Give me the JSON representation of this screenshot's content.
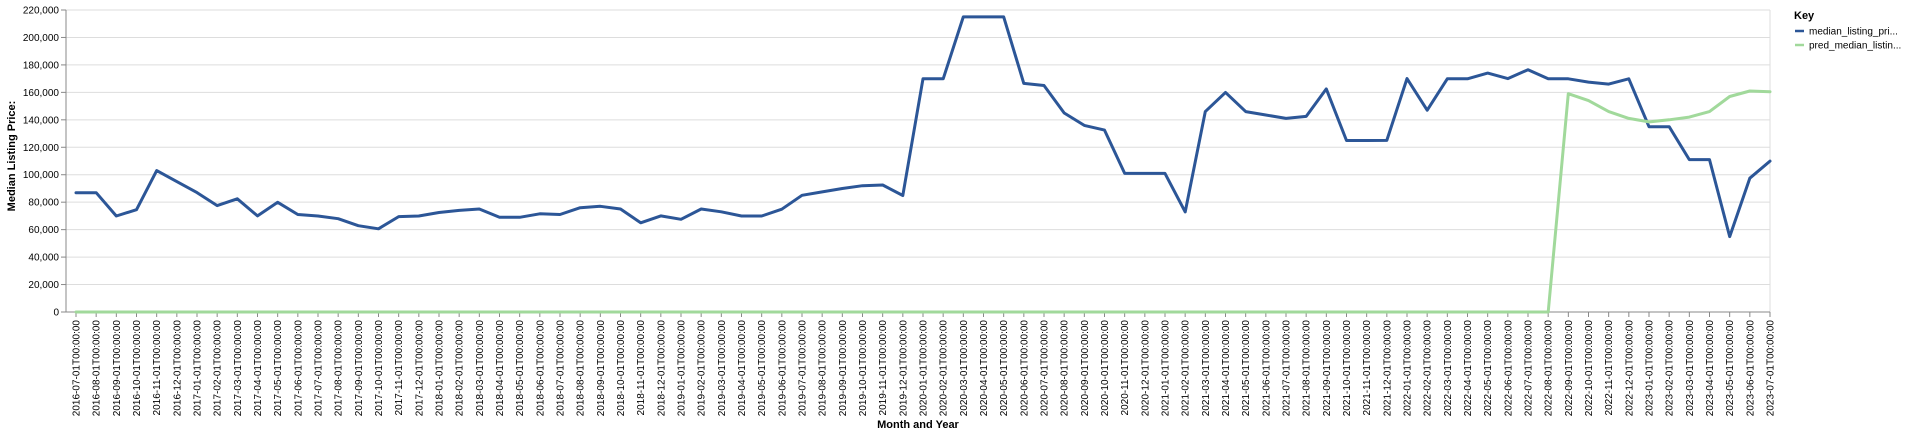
{
  "chart_data": {
    "type": "line",
    "xlabel": "Month and Year",
    "ylabel": "Median Listing Price:",
    "ylim": [
      0,
      220000
    ],
    "y_ticks": [
      "0",
      "20,000",
      "40,000",
      "60,000",
      "80,000",
      "100,000",
      "120,000",
      "140,000",
      "160,000",
      "180,000",
      "200,000",
      "220,000"
    ],
    "grid": "horizontal",
    "legend": {
      "title": "Key",
      "placement": "right"
    },
    "categories": [
      "2016-07-01T00:00:00",
      "2016-08-01T00:00:00",
      "2016-09-01T00:00:00",
      "2016-10-01T00:00:00",
      "2016-11-01T00:00:00",
      "2016-12-01T00:00:00",
      "2017-01-01T00:00:00",
      "2017-02-01T00:00:00",
      "2017-03-01T00:00:00",
      "2017-04-01T00:00:00",
      "2017-05-01T00:00:00",
      "2017-06-01T00:00:00",
      "2017-07-01T00:00:00",
      "2017-08-01T00:00:00",
      "2017-09-01T00:00:00",
      "2017-10-01T00:00:00",
      "2017-11-01T00:00:00",
      "2017-12-01T00:00:00",
      "2018-01-01T00:00:00",
      "2018-02-01T00:00:00",
      "2018-03-01T00:00:00",
      "2018-04-01T00:00:00",
      "2018-05-01T00:00:00",
      "2018-06-01T00:00:00",
      "2018-07-01T00:00:00",
      "2018-08-01T00:00:00",
      "2018-09-01T00:00:00",
      "2018-10-01T00:00:00",
      "2018-11-01T00:00:00",
      "2018-12-01T00:00:00",
      "2019-01-01T00:00:00",
      "2019-02-01T00:00:00",
      "2019-03-01T00:00:00",
      "2019-04-01T00:00:00",
      "2019-05-01T00:00:00",
      "2019-06-01T00:00:00",
      "2019-07-01T00:00:00",
      "2019-08-01T00:00:00",
      "2019-09-01T00:00:00",
      "2019-10-01T00:00:00",
      "2019-11-01T00:00:00",
      "2019-12-01T00:00:00",
      "2020-01-01T00:00:00",
      "2020-02-01T00:00:00",
      "2020-03-01T00:00:00",
      "2020-04-01T00:00:00",
      "2020-05-01T00:00:00",
      "2020-06-01T00:00:00",
      "2020-07-01T00:00:00",
      "2020-08-01T00:00:00",
      "2020-09-01T00:00:00",
      "2020-10-01T00:00:00",
      "2020-11-01T00:00:00",
      "2020-12-01T00:00:00",
      "2021-01-01T00:00:00",
      "2021-02-01T00:00:00",
      "2021-03-01T00:00:00",
      "2021-04-01T00:00:00",
      "2021-05-01T00:00:00",
      "2021-06-01T00:00:00",
      "2021-07-01T00:00:00",
      "2021-08-01T00:00:00",
      "2021-09-01T00:00:00",
      "2021-10-01T00:00:00",
      "2021-11-01T00:00:00",
      "2021-12-01T00:00:00",
      "2022-01-01T00:00:00",
      "2022-02-01T00:00:00",
      "2022-03-01T00:00:00",
      "2022-04-01T00:00:00",
      "2022-05-01T00:00:00",
      "2022-06-01T00:00:00",
      "2022-07-01T00:00:00",
      "2022-08-01T00:00:00",
      "2022-09-01T00:00:00",
      "2022-10-01T00:00:00",
      "2022-11-01T00:00:00",
      "2022-12-01T00:00:00",
      "2023-01-01T00:00:00",
      "2023-02-01T00:00:00",
      "2023-03-01T00:00:00",
      "2023-04-01T00:00:00",
      "2023-05-01T00:00:00",
      "2023-06-01T00:00:00",
      "2023-07-01T00:00:00"
    ],
    "series": [
      {
        "name": "median_listing_pri...",
        "color": "#2c5697",
        "values": [
          86900,
          86900,
          69900,
          74500,
          103000,
          95000,
          87000,
          77500,
          82500,
          70000,
          79900,
          71000,
          69900,
          68000,
          62900,
          60600,
          69500,
          69900,
          72500,
          74000,
          75000,
          69000,
          69000,
          71500,
          71000,
          76000,
          77000,
          75000,
          65000,
          70000,
          67500,
          75000,
          73000,
          69900,
          69900,
          74900,
          85000,
          87500,
          90000,
          92000,
          92500,
          84900,
          169900,
          169900,
          215000,
          215000,
          215000,
          166500,
          165000,
          145000,
          135900,
          132500,
          101000,
          101000,
          101000,
          72900,
          146000,
          160000,
          146000,
          143500,
          141000,
          142500,
          162500,
          124900,
          124900,
          125000,
          170000,
          147000,
          169900,
          169900,
          174000,
          170000,
          176500,
          169900,
          169900,
          167500,
          166000,
          169900,
          135000,
          135000,
          111000,
          111000,
          54900,
          97500,
          109900
        ]
      },
      {
        "name": "pred_median_listin...",
        "color": "#a1d99b",
        "values": [
          0,
          0,
          0,
          0,
          0,
          0,
          0,
          0,
          0,
          0,
          0,
          0,
          0,
          0,
          0,
          0,
          0,
          0,
          0,
          0,
          0,
          0,
          0,
          0,
          0,
          0,
          0,
          0,
          0,
          0,
          0,
          0,
          0,
          0,
          0,
          0,
          0,
          0,
          0,
          0,
          0,
          0,
          0,
          0,
          0,
          0,
          0,
          0,
          0,
          0,
          0,
          0,
          0,
          0,
          0,
          0,
          0,
          0,
          0,
          0,
          0,
          0,
          0,
          0,
          0,
          0,
          0,
          0,
          0,
          0,
          0,
          0,
          0,
          0,
          159000,
          154000,
          146000,
          141000,
          138500,
          140000,
          142000,
          146000,
          157000,
          161000,
          160500
        ]
      }
    ]
  }
}
